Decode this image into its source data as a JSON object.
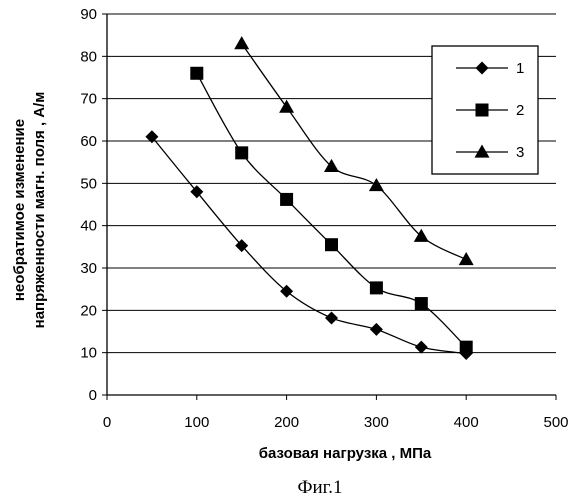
{
  "chart_data": {
    "type": "line",
    "title": "",
    "xlabel": "базовая нагрузка , МПа",
    "ylabel_lines": [
      "необратимое изменение",
      "напряженности магн. поля , А/м"
    ],
    "xlim": [
      0,
      500
    ],
    "ylim": [
      0,
      90
    ],
    "x_ticks": [
      0,
      100,
      200,
      300,
      400,
      500
    ],
    "y_ticks": [
      0,
      10,
      20,
      30,
      40,
      50,
      60,
      70,
      80,
      90
    ],
    "grid": "horizontal",
    "legend_position": "top-right",
    "series": [
      {
        "name": "1",
        "marker": "diamond",
        "points": [
          [
            50,
            61
          ],
          [
            100,
            48
          ],
          [
            150,
            35.3
          ],
          [
            200,
            24.5
          ],
          [
            250,
            18.2
          ],
          [
            300,
            15.5
          ],
          [
            350,
            11.3
          ],
          [
            400,
            9.8
          ]
        ]
      },
      {
        "name": "2",
        "marker": "square",
        "points": [
          [
            100,
            76
          ],
          [
            150,
            57.2
          ],
          [
            200,
            46.2
          ],
          [
            250,
            35.5
          ],
          [
            300,
            25.3
          ],
          [
            350,
            21.6
          ],
          [
            400,
            11.3
          ]
        ]
      },
      {
        "name": "3",
        "marker": "triangle",
        "points": [
          [
            150,
            83
          ],
          [
            200,
            68
          ],
          [
            250,
            54
          ],
          [
            300,
            49.5
          ],
          [
            350,
            37.5
          ],
          [
            400,
            32
          ]
        ]
      }
    ]
  },
  "caption": "Фиг.1"
}
